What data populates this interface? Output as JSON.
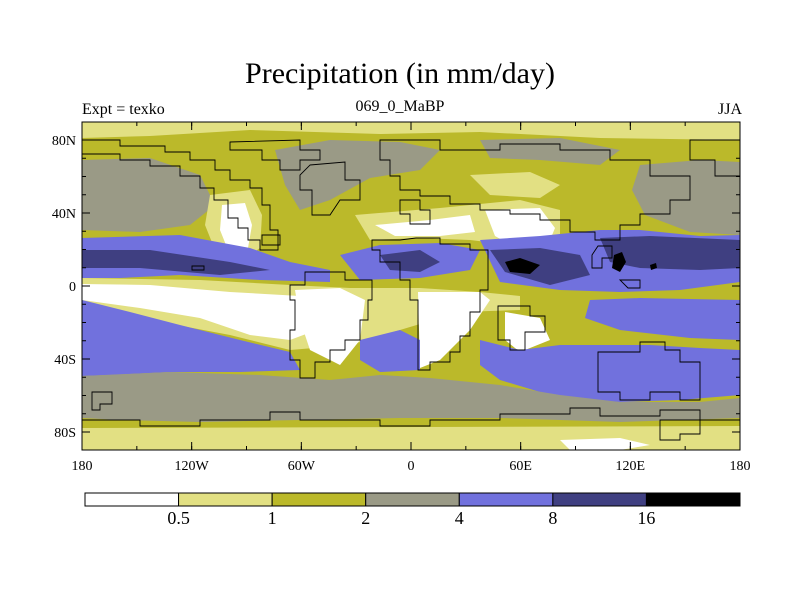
{
  "title": "Precipitation (in mm/day)",
  "left_label": "Expt = texko",
  "center_label": "069_0_MaBP",
  "right_label": "JJA",
  "colors": {
    "c0": "#ffffff",
    "c1": "#e2e083",
    "c2": "#bbb92a",
    "c3": "#9a9a86",
    "c4": "#7171dd",
    "c5": "#3f3f81",
    "c6": "#000000"
  },
  "x_ticks": [
    "180",
    "120W",
    "60W",
    "0",
    "60E",
    "120E",
    "180"
  ],
  "y_ticks": [
    "80N",
    "40N",
    "0",
    "40S",
    "80S"
  ],
  "colorbar": {
    "levels": [
      "0.5",
      "1",
      "2",
      "4",
      "8",
      "16"
    ]
  }
}
